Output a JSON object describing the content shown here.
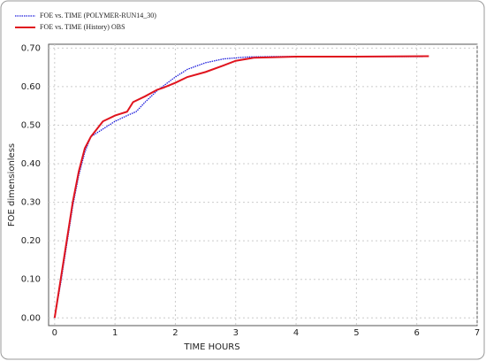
{
  "chart_data": {
    "type": "line",
    "xlabel": "TIME HOURS",
    "ylabel": "FOE dimensionless",
    "xlim": [
      -0.1,
      7
    ],
    "ylim": [
      -0.02,
      0.71
    ],
    "xticks": [
      0,
      1,
      2,
      3,
      4,
      5,
      6,
      7
    ],
    "yticks": [
      {
        "value": 0,
        "label": "0.00"
      },
      {
        "value": 0.1,
        "label": "0.10"
      },
      {
        "value": 0.2,
        "label": "0.20"
      },
      {
        "value": 0.3,
        "label": "0.30"
      },
      {
        "value": 0.4,
        "label": "0.40"
      },
      {
        "value": 0.5,
        "label": "0.50"
      },
      {
        "value": 0.6,
        "label": "0.60"
      },
      {
        "value": 0.7,
        "label": "0.70"
      }
    ],
    "grid": true,
    "legend": "top-left",
    "series": [
      {
        "name": "FOE vs. TIME (POLYMER-RUN14_30)",
        "color": "#1a1adb",
        "style": "dotted",
        "x": [
          0,
          0.1,
          0.2,
          0.3,
          0.4,
          0.5,
          0.6,
          0.8,
          1.0,
          1.2,
          1.35,
          1.5,
          1.7,
          2.0,
          2.2,
          2.5,
          2.8,
          3.2,
          3.6,
          4,
          5,
          6.1
        ],
        "values": [
          0,
          0.09,
          0.19,
          0.29,
          0.37,
          0.43,
          0.47,
          0.49,
          0.51,
          0.525,
          0.535,
          0.56,
          0.59,
          0.625,
          0.645,
          0.662,
          0.672,
          0.677,
          0.678,
          0.678,
          0.678,
          0.678
        ]
      },
      {
        "name": "FOE vs. TIME (History) OBS",
        "color": "#e0141e",
        "style": "solid",
        "x": [
          0,
          0.1,
          0.2,
          0.3,
          0.4,
          0.5,
          0.6,
          0.7,
          0.8,
          1.0,
          1.2,
          1.3,
          1.5,
          1.7,
          1.8,
          2.0,
          2.2,
          2.5,
          2.8,
          3.0,
          3.3,
          3.6,
          4,
          5,
          6.2
        ],
        "values": [
          0,
          0.1,
          0.2,
          0.3,
          0.38,
          0.44,
          0.47,
          0.49,
          0.51,
          0.525,
          0.535,
          0.56,
          0.575,
          0.592,
          0.597,
          0.61,
          0.625,
          0.638,
          0.655,
          0.667,
          0.675,
          0.676,
          0.678,
          0.678,
          0.679
        ]
      }
    ]
  }
}
